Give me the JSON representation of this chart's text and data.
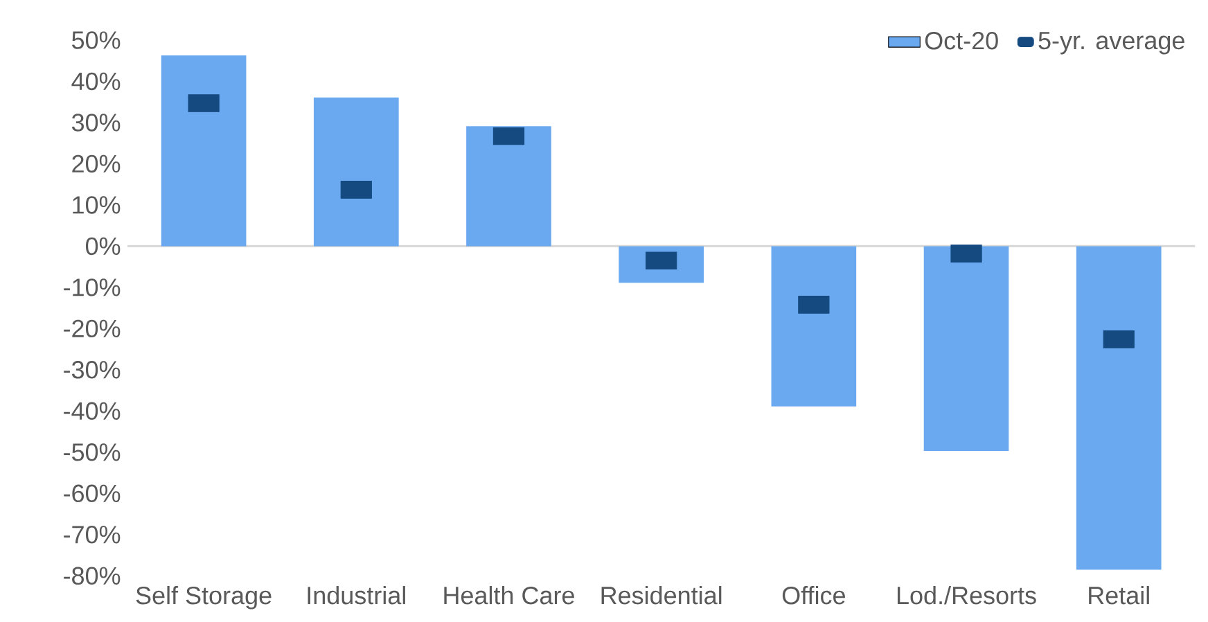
{
  "chart_data": {
    "type": "bar",
    "categories": [
      "Self Storage",
      "Industrial",
      "Health Care",
      "Residential",
      "Office",
      "Lod./Resorts",
      "Retail"
    ],
    "series": [
      {
        "name": "Oct-20",
        "type": "bar",
        "color": "#6aa9f0",
        "values": [
          46.3,
          36.1,
          29.1,
          -8.9,
          -38.9,
          -49.7,
          -78.5
        ]
      },
      {
        "name": "5-yr. average",
        "type": "scatter",
        "color": "#144a80",
        "x": [
          "Self Storage",
          "Industrial",
          "Health Care",
          "Residential",
          "Office",
          "Lod./Resorts",
          "Retail"
        ],
        "values": [
          34.7,
          13.7,
          26.7,
          -3.5,
          -14.2,
          -1.8,
          -22.6
        ]
      }
    ],
    "ylim": [
      -80,
      50
    ],
    "yticks": [
      {
        "value": -80,
        "label": "-80%"
      },
      {
        "value": -70,
        "label": "-70%"
      },
      {
        "value": -60,
        "label": "-60%"
      },
      {
        "value": -50,
        "label": "-50%"
      },
      {
        "value": -40,
        "label": "-40%"
      },
      {
        "value": -30,
        "label": "-30%"
      },
      {
        "value": -20,
        "label": "-20%"
      },
      {
        "value": -10,
        "label": "-10%"
      },
      {
        "value": 0,
        "label": "0%"
      },
      {
        "value": 10,
        "label": "10%"
      },
      {
        "value": 20,
        "label": "20%"
      },
      {
        "value": 30,
        "label": "30%"
      },
      {
        "value": 40,
        "label": "40%"
      },
      {
        "value": 50,
        "label": "50%"
      }
    ],
    "grid": false,
    "ref_lines": [
      {
        "axis": "y",
        "value": 0,
        "color": "#d9d9d9"
      }
    ],
    "legend": "top right"
  }
}
